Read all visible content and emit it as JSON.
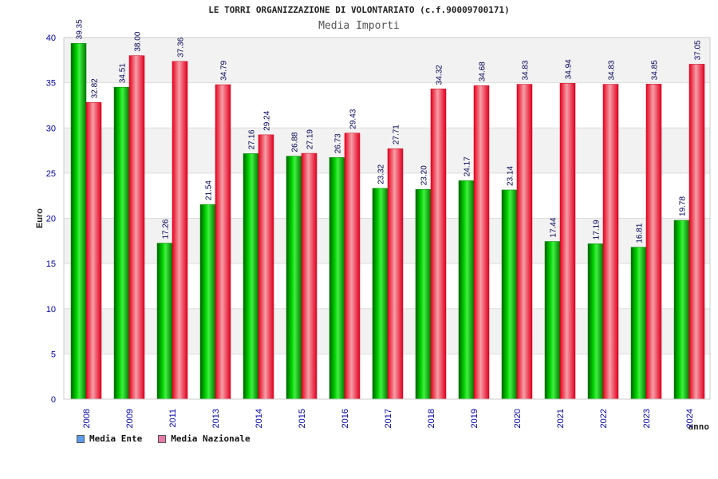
{
  "title": "LE TORRI ORGANIZZAZIONE DI VOLONTARIATO (c.f.90009700171)",
  "subtitle": "Media Importi",
  "colors": {
    "ente": "#00b000",
    "nazionale": "#e8203a",
    "legend_ente": "#5b9be8",
    "legend_nazionale": "#e87aa8",
    "axis_text": "#0000aa",
    "grid_band": "#f2f2f2"
  },
  "legend": {
    "ente": "Media Ente",
    "nazionale": "Media Nazionale"
  },
  "chart_data": {
    "type": "bar",
    "title": "LE TORRI ORGANIZZAZIONE DI VOLONTARIATO (c.f.90009700171)",
    "subtitle": "Media Importi",
    "xlabel": "anno",
    "ylabel": "Euro",
    "ylim": [
      0,
      40
    ],
    "yticks": [
      0,
      5,
      10,
      15,
      20,
      25,
      30,
      35,
      40
    ],
    "grid": true,
    "legend_position": "bottom-left",
    "categories": [
      "2008",
      "2009",
      "2011",
      "2013",
      "2014",
      "2015",
      "2016",
      "2017",
      "2018",
      "2019",
      "2020",
      "2021",
      "2022",
      "2023",
      "2024"
    ],
    "series": [
      {
        "name": "Media Ente",
        "values": [
          39.35,
          34.51,
          17.26,
          21.54,
          27.16,
          26.88,
          26.73,
          23.32,
          23.2,
          24.17,
          23.14,
          17.44,
          17.19,
          16.81,
          19.78
        ],
        "labels": [
          "39.35",
          "34.51",
          "17.26",
          "21.54",
          "27.16",
          "26.88",
          "26.73",
          "23.32",
          "23.20",
          "24.17",
          "23.14",
          "17.44",
          "17.19",
          "16.81",
          "19.78"
        ]
      },
      {
        "name": "Media Nazionale",
        "values": [
          32.82,
          38.0,
          37.36,
          34.79,
          29.24,
          27.19,
          29.43,
          27.71,
          34.32,
          34.68,
          34.83,
          34.94,
          34.83,
          34.85,
          37.05
        ],
        "labels": [
          "32.82",
          "38.00",
          "37.36",
          "34.79",
          "29.24",
          "27.19",
          "29.43",
          "27.71",
          "34.32",
          "34.68",
          "34.83",
          "34.94",
          "34.83",
          "34.85",
          "37.05"
        ]
      }
    ]
  }
}
